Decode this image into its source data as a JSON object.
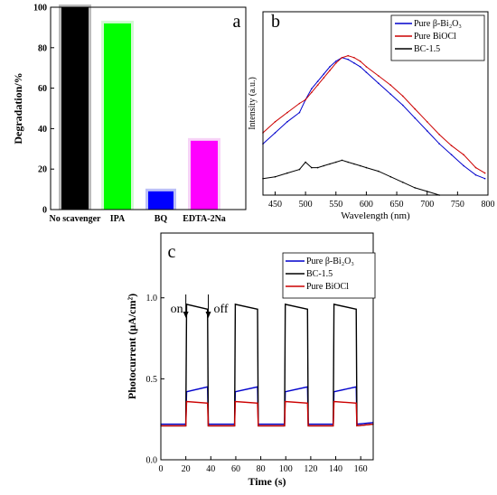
{
  "panels": [
    {
      "label": "a"
    },
    {
      "label": "b"
    },
    {
      "label": "c"
    }
  ],
  "chart_data": [
    {
      "type": "bar",
      "panel": "a",
      "categories": [
        "No scavenger",
        "IPA",
        "BQ",
        "EDTA-2Na"
      ],
      "values": [
        100,
        92,
        9,
        34
      ],
      "colors": [
        "#000000",
        "#00ff00",
        "#0000ff",
        "#ff00ff"
      ],
      "halo_colors": [
        "#aaaaaa",
        "#c8f7c8",
        "#aab0f5",
        "#f5c8f5"
      ],
      "title": "",
      "xlabel": "",
      "ylabel": "Degradation/%",
      "ylim": [
        0,
        100
      ],
      "yticks": [
        0,
        20,
        40,
        60,
        80,
        100
      ],
      "grid": false,
      "legend": "none"
    },
    {
      "type": "line",
      "panel": "b",
      "title": "",
      "xlabel": "Wavelength (nm)",
      "ylabel": "Intensity (a.u.)",
      "xlim": [
        430,
        800
      ],
      "xticks": [
        450,
        500,
        550,
        600,
        650,
        700,
        750,
        800
      ],
      "ylim": [
        0,
        1
      ],
      "yticks_labeled": false,
      "grid": false,
      "legend": "top-right",
      "series": [
        {
          "name": "Pure β-Bi₂O₃",
          "color": "#0000cc",
          "x": [
            430,
            450,
            470,
            490,
            500,
            510,
            520,
            530,
            540,
            550,
            560,
            570,
            580,
            590,
            600,
            620,
            640,
            660,
            680,
            700,
            720,
            740,
            760,
            780,
            795
          ],
          "y": [
            0.28,
            0.34,
            0.4,
            0.45,
            0.52,
            0.58,
            0.62,
            0.66,
            0.7,
            0.73,
            0.75,
            0.74,
            0.72,
            0.7,
            0.67,
            0.61,
            0.55,
            0.49,
            0.42,
            0.35,
            0.28,
            0.22,
            0.16,
            0.11,
            0.09
          ]
        },
        {
          "name": "Pure BiOCl",
          "color": "#cc0000",
          "x": [
            430,
            450,
            470,
            490,
            500,
            510,
            520,
            530,
            540,
            550,
            560,
            570,
            580,
            590,
            600,
            620,
            640,
            660,
            680,
            700,
            720,
            740,
            760,
            780,
            795
          ],
          "y": [
            0.34,
            0.4,
            0.45,
            0.5,
            0.52,
            0.56,
            0.6,
            0.64,
            0.68,
            0.72,
            0.75,
            0.76,
            0.75,
            0.73,
            0.7,
            0.65,
            0.6,
            0.54,
            0.47,
            0.4,
            0.33,
            0.27,
            0.22,
            0.15,
            0.12
          ]
        },
        {
          "name": "BC-1.5",
          "color": "#000000",
          "x": [
            430,
            450,
            470,
            490,
            500,
            510,
            520,
            530,
            540,
            550,
            560,
            570,
            580,
            590,
            600,
            620,
            640,
            660,
            680,
            700,
            720
          ],
          "y": [
            0.09,
            0.1,
            0.12,
            0.14,
            0.18,
            0.15,
            0.15,
            0.16,
            0.17,
            0.18,
            0.19,
            0.18,
            0.17,
            0.16,
            0.15,
            0.13,
            0.1,
            0.07,
            0.04,
            0.02,
            0.0
          ]
        }
      ]
    },
    {
      "type": "line",
      "panel": "c",
      "title": "",
      "xlabel": "Time (s)",
      "ylabel": "Photocurrent (μA/cm²)",
      "xlim": [
        0,
        170
      ],
      "xticks": [
        0,
        20,
        40,
        60,
        80,
        100,
        120,
        140,
        160
      ],
      "ylim": [
        0,
        1.4
      ],
      "yticks": [
        0.0,
        0.5,
        1.0
      ],
      "grid": false,
      "legend": "top-right",
      "annotations": [
        {
          "text": "on",
          "x": 20
        },
        {
          "text": "off",
          "x": 38
        }
      ],
      "on_intervals": [
        [
          20,
          38
        ],
        [
          59,
          78
        ],
        [
          99,
          118
        ],
        [
          138,
          157
        ]
      ],
      "series": [
        {
          "name": "Pure β-Bi₂O₃",
          "color": "#0000cc",
          "off": 0.22,
          "on_start": 0.42,
          "on_end": 0.45
        },
        {
          "name": "BC-1.5",
          "color": "#000000",
          "off": 0.21,
          "on_start": 0.96,
          "on_end": 0.93
        },
        {
          "name": "Pure BiOCl",
          "color": "#cc0000",
          "off": 0.21,
          "on_start": 0.36,
          "on_end": 0.35
        }
      ]
    }
  ]
}
